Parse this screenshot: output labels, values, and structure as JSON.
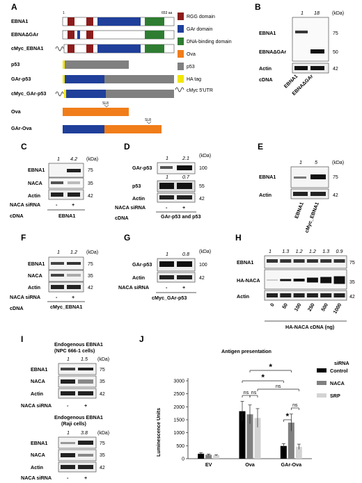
{
  "panels": {
    "A": "A",
    "B": "B",
    "C": "C",
    "D": "D",
    "E": "E",
    "F": "F",
    "G": "G",
    "H": "H",
    "I": "I",
    "J": "J"
  },
  "common": {
    "kda": "(kDa)",
    "cdna": "cDNA",
    "naca_sirna": "NACA siRNA",
    "minus": "-",
    "plus": "+"
  },
  "panel_a": {
    "constructs": [
      "EBNA1",
      "EBNAΔGAr",
      "cMyc_EBNA1",
      "p53",
      "GAr-p53",
      "cMyc_GAr-p53",
      "Ova",
      "GAr-Ova"
    ],
    "scale_start": "1",
    "scale_end": "653 aa",
    "sl8": "SL8",
    "legend": [
      {
        "label": "RGG domain",
        "color": "#8b1c1c"
      },
      {
        "label": "GAr domain",
        "color": "#1f3f9a"
      },
      {
        "label": "DNA-binding domain",
        "color": "#2e7d32"
      },
      {
        "label": "Ova",
        "color": "#f07d1a"
      },
      {
        "label": "p53",
        "color": "#808080"
      },
      {
        "label": "HA tag",
        "color": "#f2e600"
      },
      {
        "label": "cMyc 5'UTR",
        "color": "#222222"
      }
    ]
  },
  "panel_b": {
    "quant": [
      "1",
      "18"
    ],
    "rows": [
      "EBNA1",
      "EBNAΔGAr",
      "Actin"
    ],
    "mw": [
      "75",
      "50",
      "42"
    ],
    "lanes": [
      "EBNA1",
      "EBNAΔGAr"
    ]
  },
  "panel_c": {
    "quant": [
      "1",
      "4.2"
    ],
    "rows": [
      "EBNA1",
      "NACA",
      "Actin"
    ],
    "mw": [
      "75",
      "35",
      "42"
    ],
    "cdna_value": "EBNA1"
  },
  "panel_d": {
    "quant1": [
      "1",
      "2.1"
    ],
    "quant2": [
      "1",
      "0.7"
    ],
    "rows": [
      "GAr-p53",
      "p53",
      "Actin"
    ],
    "mw": [
      "100",
      "55",
      "42"
    ],
    "cdna_value": "GAr-p53 and p53"
  },
  "panel_e": {
    "quant": [
      "1",
      "5"
    ],
    "rows": [
      "EBNA1",
      "Actin"
    ],
    "mw": [
      "75",
      "42"
    ],
    "lanes": [
      "EBNA1",
      "cMyc_EBNA1"
    ]
  },
  "panel_f": {
    "quant": [
      "1",
      "1.2"
    ],
    "rows": [
      "EBNA1",
      "NACA",
      "Actin"
    ],
    "mw": [
      "75",
      "35",
      "42"
    ],
    "cdna_value": "cMyc_EBNA1"
  },
  "panel_g": {
    "quant": [
      "1",
      "0.8"
    ],
    "rows": [
      "GAr-p53",
      "Actin"
    ],
    "mw": [
      "100",
      "42"
    ],
    "cdna_value": "cMyc_GAr-p53"
  },
  "panel_h": {
    "quant": [
      "1",
      "1.3",
      "1.2",
      "1.2",
      "1.3",
      "0.9"
    ],
    "rows": [
      "EBNA1",
      "HA-NACA",
      "Actin"
    ],
    "mw": [
      "75",
      "35",
      "42"
    ],
    "lanes": [
      "0",
      "50",
      "100",
      "250",
      "500",
      "1000"
    ],
    "xlabel": "HA-NACA cDNA (ng)"
  },
  "panel_i": {
    "top": {
      "title1": "Endogenous EBNA1",
      "title2": "(NPC 666-1 cells)",
      "quant": [
        "1",
        "1.5"
      ],
      "rows": [
        "EBNA1",
        "NACA",
        "Actin"
      ],
      "mw": [
        "75",
        "35",
        "42"
      ]
    },
    "bottom": {
      "title1": "Endogenous EBNA1",
      "title2": "(Raji cells)",
      "quant": [
        "1",
        "3.8"
      ],
      "rows": [
        "EBNA1",
        "NACA",
        "Actin"
      ],
      "mw": [
        "75",
        "35",
        "42"
      ]
    }
  },
  "chart_data": {
    "type": "bar",
    "title": "Antigen presentation",
    "ylabel": "Luminescence Units",
    "xlabel": "",
    "categories": [
      "EV",
      "Ova",
      "GAr-Ova"
    ],
    "ylim": [
      0,
      3000
    ],
    "yticks": [
      "0",
      "500",
      "1000",
      "1500",
      "2000",
      "2500",
      "3000"
    ],
    "legend_title": "siRNA",
    "legend_position": "right",
    "series": [
      {
        "name": "Control",
        "color": "#000000",
        "values": [
          190,
          1830,
          490
        ],
        "errors": [
          40,
          380,
          90
        ]
      },
      {
        "name": "NACA",
        "color": "#808080",
        "values": [
          150,
          1710,
          1390
        ],
        "errors": [
          30,
          360,
          330
        ]
      },
      {
        "name": "SRP",
        "color": "#d3d3d3",
        "values": [
          130,
          1570,
          460
        ],
        "errors": [
          20,
          360,
          100
        ]
      }
    ],
    "annotations": [
      "ns",
      "ns",
      "ns",
      "ns",
      "*",
      "*",
      "*"
    ]
  }
}
